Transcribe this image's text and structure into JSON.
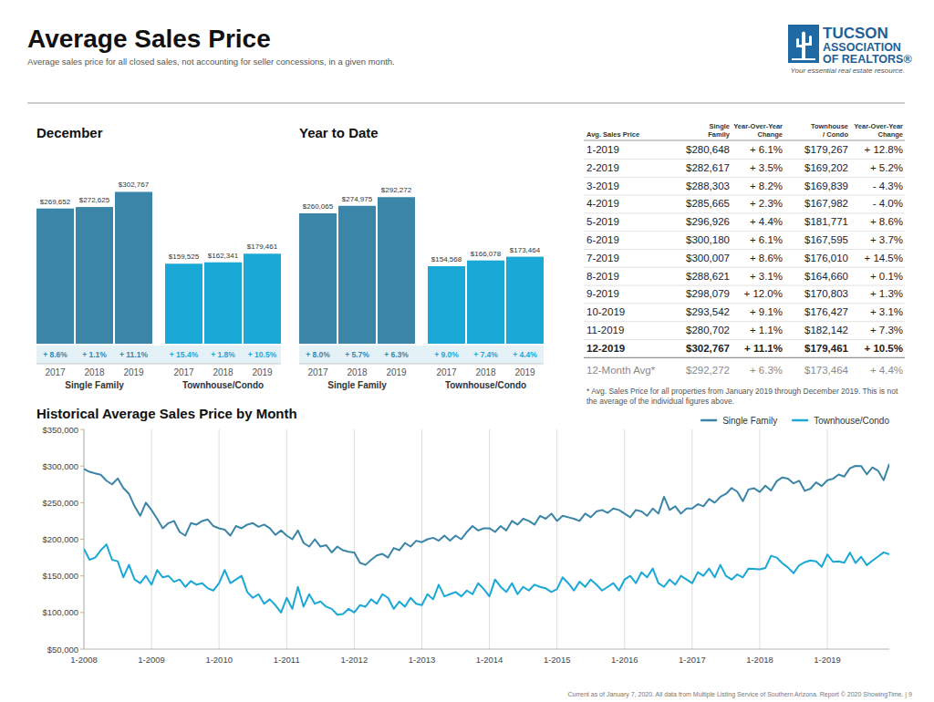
{
  "header": {
    "title": "Average Sales Price",
    "subtitle": "Average sales price for all closed sales, not accounting for seller concessions, in a given month.",
    "logo": [
      "TUCSON",
      "ASSOCIATION",
      "OF REALTORS®"
    ],
    "tagline": "Your essential real estate resource."
  },
  "chart_data": [
    {
      "type": "bar",
      "title": "December",
      "categories": [
        "2017",
        "2018",
        "2019"
      ],
      "series": [
        {
          "name": "Single Family",
          "color": "#3b85a8",
          "values": [
            269652,
            272625,
            302767
          ],
          "value_labels": [
            "$269,652",
            "$272,625",
            "$302,767"
          ],
          "change": [
            8.6,
            1.1,
            11.1
          ],
          "change_labels": [
            "+ 8.6%",
            "+ 1.1%",
            "+ 11.1%"
          ]
        },
        {
          "name": "Townhouse/Condo",
          "color": "#1aa8d6",
          "values": [
            159525,
            162341,
            179461
          ],
          "value_labels": [
            "$159,525",
            "$162,341",
            "$179,461"
          ],
          "change": [
            15.4,
            1.8,
            10.5
          ],
          "change_labels": [
            "+ 15.4%",
            "+ 1.8%",
            "+ 10.5%"
          ]
        }
      ],
      "ylim": [
        0,
        400000
      ],
      "data_labels": true,
      "tick_labels": "x"
    },
    {
      "type": "bar",
      "title": "Year to Date",
      "categories": [
        "2017",
        "2018",
        "2019"
      ],
      "series": [
        {
          "name": "Single Family",
          "color": "#3b85a8",
          "values": [
            260065,
            274975,
            292272
          ],
          "value_labels": [
            "$260,065",
            "$274,975",
            "$292,272"
          ],
          "change": [
            8.0,
            5.7,
            6.3
          ],
          "change_labels": [
            "+ 8.0%",
            "+ 5.7%",
            "+ 6.3%"
          ]
        },
        {
          "name": "Townhouse/Condo",
          "color": "#1aa8d6",
          "values": [
            154568,
            166078,
            173464
          ],
          "value_labels": [
            "$154,568",
            "$166,078",
            "$173,464"
          ],
          "change": [
            9.0,
            7.4,
            4.4
          ],
          "change_labels": [
            "+ 9.0%",
            "+ 7.4%",
            "+ 4.4%"
          ]
        }
      ],
      "ylim": [
        0,
        400000
      ],
      "data_labels": true,
      "tick_labels": "x"
    },
    {
      "type": "line",
      "title": "Historical Average Sales Price by Month",
      "categories": [
        "1-2008",
        null,
        null,
        null,
        null,
        null,
        null,
        null,
        null,
        null,
        null,
        null,
        "1-2009",
        null,
        null,
        null,
        null,
        null,
        null,
        null,
        null,
        null,
        null,
        null,
        "1-2010",
        null,
        null,
        null,
        null,
        null,
        null,
        null,
        null,
        null,
        null,
        null,
        "1-2011",
        null,
        null,
        null,
        null,
        null,
        null,
        null,
        null,
        null,
        null,
        null,
        "1-2012",
        null,
        null,
        null,
        null,
        null,
        null,
        null,
        null,
        null,
        null,
        null,
        "1-2013",
        null,
        null,
        null,
        null,
        null,
        null,
        null,
        null,
        null,
        null,
        null,
        "1-2014",
        null,
        null,
        null,
        null,
        null,
        null,
        null,
        null,
        null,
        null,
        null,
        "1-2015",
        null,
        null,
        null,
        null,
        null,
        null,
        null,
        null,
        null,
        null,
        null,
        "1-2016",
        null,
        null,
        null,
        null,
        null,
        null,
        null,
        null,
        null,
        null,
        null,
        "1-2017",
        null,
        null,
        null,
        null,
        null,
        null,
        null,
        null,
        null,
        null,
        null,
        "1-2018",
        null,
        null,
        null,
        null,
        null,
        null,
        null,
        null,
        null,
        null,
        null,
        "1-2019",
        null,
        null,
        null,
        null,
        null,
        null,
        null,
        null,
        null,
        null,
        null
      ],
      "series": [
        {
          "name": "Single Family",
          "color": "#3b85a8",
          "values": [
            296000,
            292000,
            290000,
            288000,
            280000,
            275000,
            283000,
            270000,
            262000,
            245000,
            232000,
            250000,
            240000,
            228000,
            215000,
            222000,
            225000,
            210000,
            205000,
            222000,
            220000,
            225000,
            227000,
            218000,
            215000,
            213000,
            205000,
            218000,
            215000,
            220000,
            222000,
            217000,
            220000,
            215000,
            206000,
            212000,
            205000,
            200000,
            212000,
            195000,
            190000,
            200000,
            190000,
            192000,
            182000,
            190000,
            185000,
            183000,
            182000,
            168000,
            165000,
            172000,
            178000,
            180000,
            175000,
            188000,
            185000,
            195000,
            190000,
            198000,
            196000,
            200000,
            202000,
            198000,
            205000,
            198000,
            205000,
            200000,
            210000,
            218000,
            212000,
            215000,
            215000,
            210000,
            218000,
            212000,
            225000,
            220000,
            228000,
            225000,
            220000,
            232000,
            228000,
            235000,
            225000,
            232000,
            230000,
            228000,
            225000,
            235000,
            230000,
            238000,
            240000,
            236000,
            242000,
            240000,
            235000,
            230000,
            240000,
            238000,
            232000,
            242000,
            235000,
            258000,
            240000,
            245000,
            235000,
            242000,
            242000,
            248000,
            245000,
            255000,
            250000,
            258000,
            262000,
            270000,
            265000,
            252000,
            268000,
            269652,
            264500,
            273100,
            266500,
            279200,
            284400,
            282900,
            276300,
            279900,
            266100,
            269100,
            277600,
            272625,
            280648,
            282617,
            288303,
            285665,
            296926,
            300180,
            300007,
            288621,
            298079,
            293542,
            280702,
            302767
          ]
        },
        {
          "name": "Townhouse/Condo",
          "color": "#1aa8d6",
          "values": [
            187000,
            172000,
            175000,
            185000,
            193000,
            172000,
            170000,
            148000,
            165000,
            145000,
            140000,
            150000,
            138000,
            158000,
            148000,
            150000,
            142000,
            145000,
            135000,
            143000,
            138000,
            140000,
            133000,
            130000,
            140000,
            158000,
            140000,
            145000,
            150000,
            128000,
            120000,
            125000,
            112000,
            118000,
            110000,
            100000,
            120000,
            105000,
            135000,
            108000,
            125000,
            112000,
            115000,
            108000,
            105000,
            97000,
            98000,
            105000,
            100000,
            110000,
            108000,
            118000,
            112000,
            125000,
            120000,
            105000,
            115000,
            108000,
            120000,
            112000,
            110000,
            125000,
            118000,
            138000,
            122000,
            125000,
            128000,
            122000,
            130000,
            125000,
            140000,
            132000,
            122000,
            145000,
            135000,
            128000,
            140000,
            125000,
            135000,
            130000,
            138000,
            135000,
            133000,
            128000,
            132000,
            148000,
            140000,
            130000,
            142000,
            135000,
            145000,
            138000,
            130000,
            135000,
            140000,
            130000,
            145000,
            150000,
            140000,
            155000,
            148000,
            160000,
            140000,
            135000,
            145000,
            138000,
            150000,
            145000,
            140000,
            155000,
            150000,
            160000,
            148000,
            165000,
            150000,
            145000,
            152000,
            148000,
            160000,
            159525,
            158900,
            160800,
            177500,
            175000,
            167400,
            161600,
            153700,
            164500,
            168600,
            171100,
            169800,
            162341,
            179267,
            169202,
            169839,
            167982,
            181771,
            167595,
            176010,
            164660,
            170803,
            176427,
            182142,
            179461
          ]
        }
      ],
      "ylim": [
        50000,
        350000
      ],
      "yticks": [
        {
          "value": 50000,
          "label": "$50,000"
        },
        {
          "value": 100000,
          "label": "$100,000"
        },
        {
          "value": 150000,
          "label": "$150,000"
        },
        {
          "value": 200000,
          "label": "$200,000"
        },
        {
          "value": 250000,
          "label": "$250,000"
        },
        {
          "value": 300000,
          "label": "$300,000"
        },
        {
          "value": 350000,
          "label": "$350,000"
        }
      ],
      "grid": true,
      "legend": "top-right"
    }
  ],
  "table": {
    "columns": [
      [
        "Avg. Sales Price"
      ],
      [
        "Single",
        "Family"
      ],
      [
        "Year-Over-Year",
        "Change"
      ],
      [
        "Townhouse",
        "/ Condo"
      ],
      [
        "Year-Over-Year",
        "Change"
      ]
    ],
    "rows": [
      [
        "1-2019",
        "$280,648",
        "+ 6.1%",
        "$179,267",
        "+ 12.8%"
      ],
      [
        "2-2019",
        "$282,617",
        "+ 3.5%",
        "$169,202",
        "+ 5.2%"
      ],
      [
        "3-2019",
        "$288,303",
        "+ 8.2%",
        "$169,839",
        "- 4.3%"
      ],
      [
        "4-2019",
        "$285,665",
        "+ 2.3%",
        "$167,982",
        "- 4.0%"
      ],
      [
        "5-2019",
        "$296,926",
        "+ 4.4%",
        "$181,771",
        "+ 8.6%"
      ],
      [
        "6-2019",
        "$300,180",
        "+ 6.1%",
        "$167,595",
        "+ 3.7%"
      ],
      [
        "7-2019",
        "$300,007",
        "+ 8.6%",
        "$176,010",
        "+ 14.5%"
      ],
      [
        "8-2019",
        "$288,621",
        "+ 3.1%",
        "$164,660",
        "+ 0.1%"
      ],
      [
        "9-2019",
        "$298,079",
        "+ 12.0%",
        "$170,803",
        "+ 1.3%"
      ],
      [
        "10-2019",
        "$293,542",
        "+ 9.1%",
        "$176,427",
        "+ 3.1%"
      ],
      [
        "11-2019",
        "$280,702",
        "+ 1.1%",
        "$182,142",
        "+ 7.3%"
      ],
      [
        "12-2019",
        "$302,767",
        "+ 11.1%",
        "$179,461",
        "+ 10.5%"
      ],
      [
        "12-Month Avg*",
        "$292,272",
        "+ 6.3%",
        "$173,464",
        "+ 4.4%"
      ]
    ],
    "note": "* Avg. Sales Price for all properties from January 2019 through December 2019. This is not the average of the individual figures above."
  },
  "footer": "Current as of January 7, 2020. All data from Multiple Listing Service of Southern Arizona. Report © 2020 ShowingTime. | 9"
}
